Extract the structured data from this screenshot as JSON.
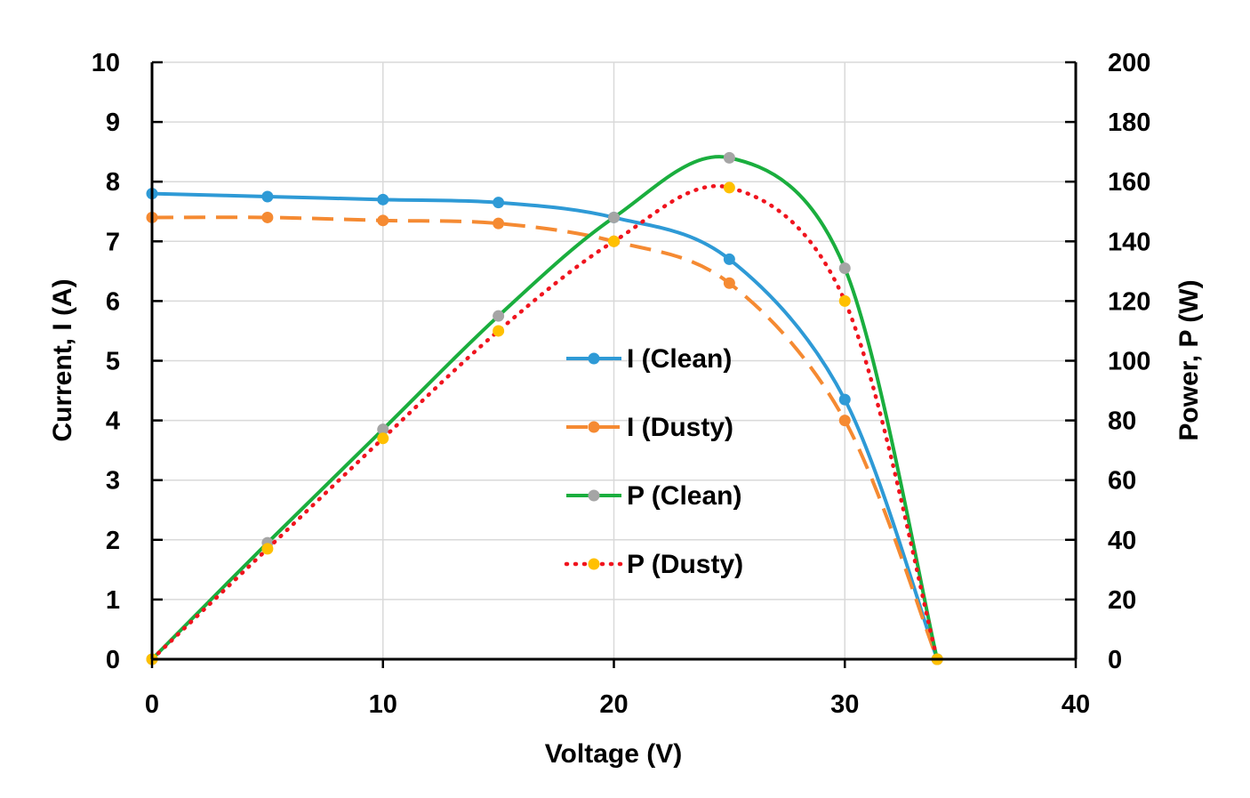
{
  "chart_data": {
    "type": "line",
    "title": "",
    "xlabel": "Voltage (V)",
    "ylabel": "Current, I (A)",
    "y2label": "Power, P (W)",
    "xlim": [
      0,
      40
    ],
    "ylim": [
      0,
      10
    ],
    "y2lim": [
      0,
      200
    ],
    "xticks": [
      "0",
      "10",
      "20",
      "30",
      "40"
    ],
    "yticks": [
      "0",
      "1",
      "2",
      "3",
      "4",
      "5",
      "6",
      "7",
      "8",
      "9",
      "10"
    ],
    "y2ticks": [
      "0",
      "20",
      "40",
      "60",
      "80",
      "100",
      "120",
      "140",
      "160",
      "180",
      "200"
    ],
    "grid": true,
    "legend_position": "center",
    "series": [
      {
        "name": "I (Clean)",
        "axis": "left",
        "line_color": "#2E9AD6",
        "marker_color": "#2E9AD6",
        "dash": "solid",
        "x": [
          0,
          5,
          10,
          15,
          20,
          25,
          30,
          34
        ],
        "y": [
          7.8,
          7.75,
          7.7,
          7.65,
          7.4,
          6.7,
          4.35,
          0
        ]
      },
      {
        "name": "I (Dusty)",
        "axis": "left",
        "line_color": "#F58A32",
        "marker_color": "#F58A32",
        "dash": "dashed",
        "x": [
          0,
          5,
          10,
          15,
          20,
          25,
          30,
          34
        ],
        "y": [
          7.4,
          7.4,
          7.35,
          7.3,
          7.0,
          6.3,
          4.0,
          0
        ]
      },
      {
        "name": "P (Clean)",
        "axis": "right",
        "line_color": "#1AAE3E",
        "marker_color": "#A5A5A5",
        "dash": "solid",
        "x": [
          0,
          5,
          10,
          15,
          20,
          25,
          30,
          34
        ],
        "y": [
          0,
          39,
          77,
          115,
          148,
          168,
          131,
          0
        ]
      },
      {
        "name": "P (Dusty)",
        "axis": "right",
        "line_color": "#F0141E",
        "marker_color": "#FFC000",
        "dash": "dotted",
        "x": [
          0,
          5,
          10,
          15,
          20,
          25,
          30,
          34
        ],
        "y": [
          0,
          37,
          74,
          110,
          140,
          158,
          120,
          0
        ]
      }
    ]
  }
}
